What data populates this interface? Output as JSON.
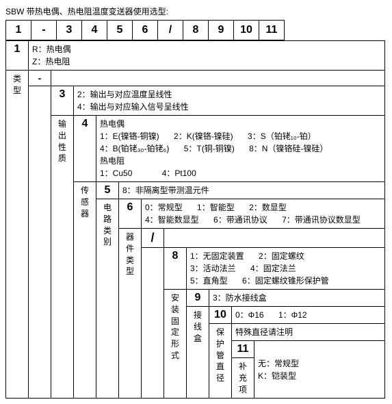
{
  "title": "SBW 带热电偶、热电阻温度变送器使用选型:",
  "header_cells": [
    "1",
    "-",
    "3",
    "4",
    "5",
    "6",
    "/",
    "8",
    "9",
    "10",
    "11"
  ],
  "s1": {
    "idx": "1",
    "label": "类型",
    "optR": "R：热电偶",
    "optZ": "Z：热电阻",
    "dash": "-"
  },
  "s3": {
    "idx": "3",
    "label": "输出性质",
    "opt2": "2：输出与对应温度呈线性",
    "opt4": "4：输出与对应输入信号呈线性"
  },
  "s4": {
    "idx": "4",
    "label": "传感器",
    "tc_title": "热电偶",
    "tc1": "1：E(镍铬-铜镍)",
    "tc2": "2：K(镍铬-镍硅)",
    "tc3": "3：S（铂铑₁₀-铂）",
    "tc4": "4：B(铂铑₃₀-铂铑₆)",
    "tc5": "5：T(铜-铜镍)",
    "tc8": "8：N（镍铬硅-镍硅）",
    "rtd_title": "热电阻",
    "rtd1": "1：Cu50",
    "rtd4": "4：Pt100"
  },
  "s5": {
    "idx": "5",
    "label": "电路类别",
    "opt8": "8：非隔离型带测温元件"
  },
  "s6": {
    "idx": "6",
    "label": "器件类型",
    "o0": "0：常规型",
    "o1": "1：智能型",
    "o2": "2：数显型",
    "o4": "4：智能数显型",
    "o6": "6：带通讯协议",
    "o7": "7：带通讯协议数显型",
    "slash": "/"
  },
  "s8": {
    "idx": "8",
    "label": "安装固定形式",
    "o1": "1：无固定装置",
    "o2": "2：固定螺纹",
    "o3": "3：活动法兰",
    "o4": "4：固定法兰",
    "o5": "5：直角型",
    "o6": "6：固定螺纹锥形保护管"
  },
  "s9": {
    "idx": "9",
    "label": "接线盒",
    "o3": "3：防水接线盒"
  },
  "s10": {
    "idx": "10",
    "label": "保护管直径",
    "o0": "0：Φ16",
    "o1": "1：Φ12",
    "note": "特殊直径请注明"
  },
  "s11": {
    "idx": "11",
    "label": "补充项",
    "oN": "无：常规型",
    "oK": "K：铠装型"
  }
}
